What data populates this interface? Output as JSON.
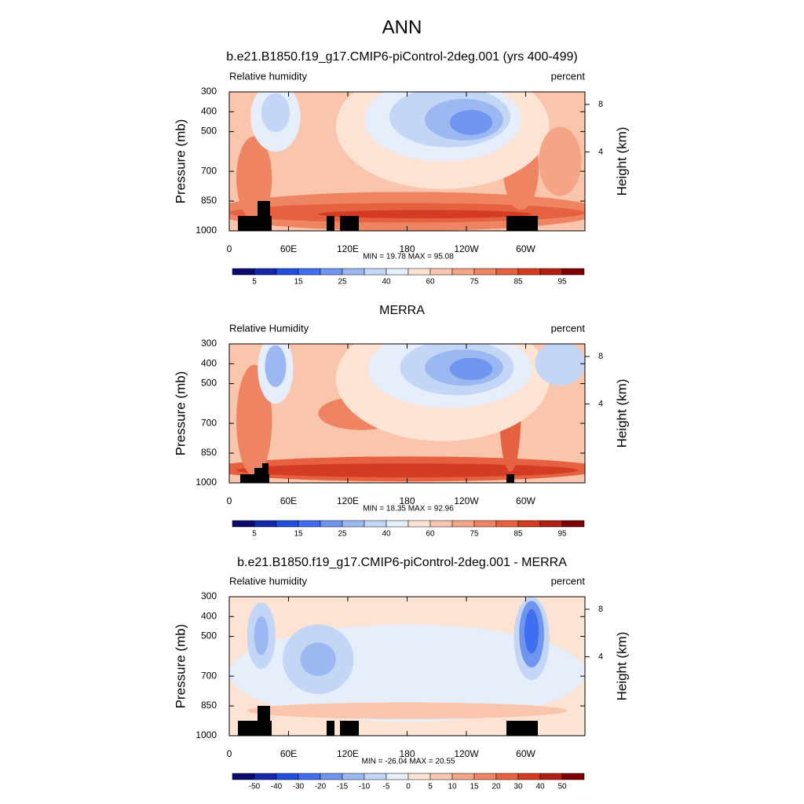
{
  "title": "ANN",
  "panels": [
    {
      "title": "b.e21.B1850.f19_g17.CMIP6-piControl-2deg.001 (yrs 400-499)",
      "left_label": "Relative humidity",
      "right_label": "percent",
      "ylabel": "Pressure (mb)",
      "y2label": "Height (km)",
      "ylim": [
        1000,
        300
      ],
      "yticks": [
        300,
        400,
        500,
        700,
        850,
        1000
      ],
      "y2ticks": [
        8,
        4
      ],
      "xlim": [
        0,
        360
      ],
      "xticks": [
        0,
        {
          "value": 60,
          "label": "60E"
        },
        {
          "value": 120,
          "label": "120E"
        },
        180,
        {
          "value": 240,
          "label": "120W"
        },
        {
          "value": 300,
          "label": "60W"
        }
      ],
      "stats": "MIN =  19.78  MAX =  95.08",
      "colorbar": {
        "labels": [
          5,
          15,
          25,
          40,
          60,
          75,
          85,
          95
        ],
        "colors": [
          "#0b0b6e",
          "#1228a8",
          "#1f4fdc",
          "#3f6ef0",
          "#6f95ef",
          "#9cb8f2",
          "#c3d6f6",
          "#e6eefb",
          "#fde3d3",
          "#f9c6ad",
          "#f4a585",
          "#ee8462",
          "#e6613f",
          "#d33c21",
          "#b01f10",
          "#7e0000"
        ]
      }
    },
    {
      "title": "MERRA",
      "left_label": "Relative Humidity",
      "right_label": "percent",
      "ylabel": "Pressure (mb)",
      "y2label": "Height (km)",
      "ylim": [
        1000,
        300
      ],
      "yticks": [
        300,
        400,
        500,
        700,
        850,
        1000
      ],
      "y2ticks": [
        8,
        4
      ],
      "xlim": [
        0,
        360
      ],
      "xticks": [
        0,
        {
          "value": 60,
          "label": "60E"
        },
        {
          "value": 120,
          "label": "120E"
        },
        180,
        {
          "value": 240,
          "label": "120W"
        },
        {
          "value": 300,
          "label": "60W"
        }
      ],
      "stats": "MIN =  18.35  MAX =  92.96",
      "colorbar": {
        "labels": [
          5,
          15,
          25,
          40,
          60,
          75,
          85,
          95
        ],
        "colors": [
          "#0b0b6e",
          "#1228a8",
          "#1f4fdc",
          "#3f6ef0",
          "#6f95ef",
          "#9cb8f2",
          "#c3d6f6",
          "#e6eefb",
          "#fde3d3",
          "#f9c6ad",
          "#f4a585",
          "#ee8462",
          "#e6613f",
          "#d33c21",
          "#b01f10",
          "#7e0000"
        ]
      }
    },
    {
      "title": "b.e21.B1850.f19_g17.CMIP6-piControl-2deg.001 - MERRA",
      "left_label": "Relative humidity",
      "right_label": "percent",
      "ylabel": "Pressure (mb)",
      "y2label": "Height (km)",
      "ylim": [
        1000,
        300
      ],
      "yticks": [
        300,
        400,
        500,
        700,
        850,
        1000
      ],
      "y2ticks": [
        8,
        4
      ],
      "xlim": [
        0,
        360
      ],
      "xticks": [
        0,
        {
          "value": 60,
          "label": "60E"
        },
        {
          "value": 120,
          "label": "120E"
        },
        180,
        {
          "value": 240,
          "label": "120W"
        },
        {
          "value": 300,
          "label": "60W"
        }
      ],
      "stats": "MIN = -26.04  MAX =  20.55",
      "colorbar": {
        "labels": [
          -50,
          -40,
          -30,
          -20,
          -15,
          -10,
          -5,
          0,
          5,
          10,
          15,
          20,
          30,
          40,
          50
        ],
        "colors": [
          "#0b0b6e",
          "#1228a8",
          "#1f4fdc",
          "#3f6ef0",
          "#6f95ef",
          "#9cb8f2",
          "#c3d6f6",
          "#e6eefb",
          "#fde3d3",
          "#f9c6ad",
          "#f4a585",
          "#ee8462",
          "#e6613f",
          "#d33c21",
          "#b01f10",
          "#7e0000"
        ]
      }
    }
  ]
}
